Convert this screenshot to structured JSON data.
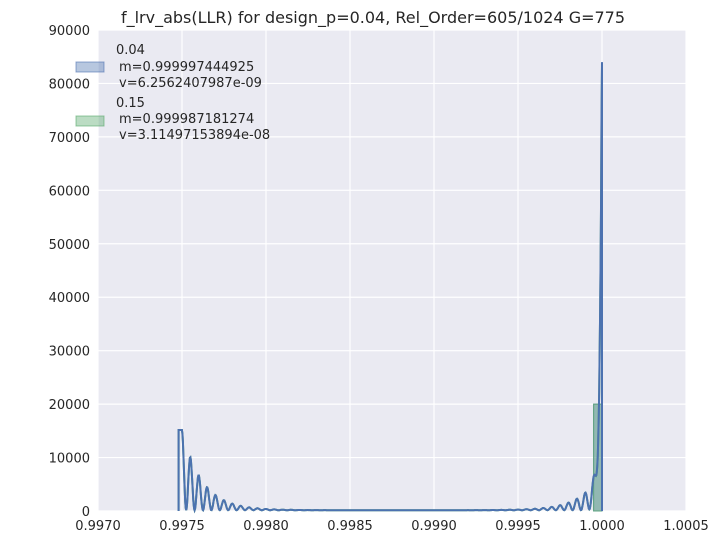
{
  "chart_data": {
    "type": "line",
    "title": "f_lrv_abs(LLR) for design_p=0.04, Rel_Order=605/1024 G=775",
    "xlabel": "",
    "ylabel": "",
    "xlim": [
      0.997,
      1.0005
    ],
    "ylim": [
      0,
      90000
    ],
    "x_ticks": [
      "0.9970",
      "0.9975",
      "0.9980",
      "0.9985",
      "0.9990",
      "0.9995",
      "1.0000",
      "1.0005"
    ],
    "y_ticks": [
      "0",
      "10000",
      "20000",
      "30000",
      "40000",
      "50000",
      "60000",
      "70000",
      "80000",
      "90000"
    ],
    "grid": true,
    "legend_position": "top-left",
    "series": [
      {
        "name": "0.04",
        "stats_lines": [
          "m=0.999997444925",
          "v=6.2562407987e-09"
        ],
        "color": "#4C72B0",
        "histogram": [
          {
            "x0": 0.99995,
            "x1": 1.0,
            "height": 20000
          }
        ],
        "peak_x": 1.0,
        "peak_value": 84000,
        "left_edge_peak_x": 0.9975,
        "left_edge_peak_value": 15000
      },
      {
        "name": "0.15",
        "stats_lines": [
          "m=0.999987181274",
          "v=3.11497153894e-08"
        ],
        "color": "#55A868",
        "histogram": [
          {
            "x0": 0.99995,
            "x1": 1.0,
            "height": 20000
          }
        ],
        "peak_x": 1.0,
        "peak_value": 83000,
        "left_edge_peak_x": 0.9975,
        "left_edge_peak_value": 15000
      }
    ]
  },
  "colors": {
    "plot_bg": "#EAEAF2",
    "grid": "#FFFFFF",
    "series_blue": "#4C72B0",
    "series_green": "#55A868"
  }
}
